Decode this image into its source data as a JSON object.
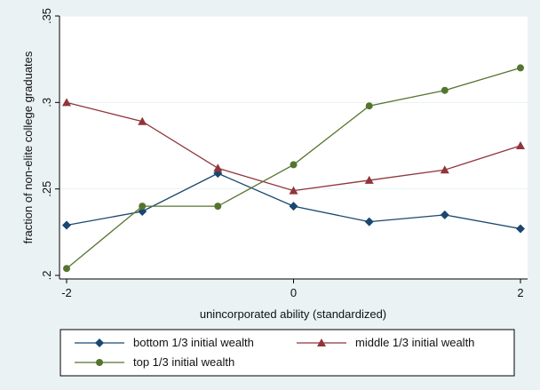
{
  "chart_data": {
    "type": "line",
    "title": "",
    "xlabel": "unincorporated ability (standardized)",
    "ylabel": "fraction of non-elite college graduates",
    "xlim": [
      -2,
      2
    ],
    "ylim": [
      0.2,
      0.35
    ],
    "xticks": [
      -2,
      0,
      2
    ],
    "xtick_labels": [
      "-2",
      "0",
      "2"
    ],
    "yticks": [
      0.2,
      0.25,
      0.3,
      0.35
    ],
    "ytick_labels": [
      ".2",
      ".25",
      ".3",
      ".35"
    ],
    "x": [
      -2,
      -1.333,
      -0.667,
      0,
      0.667,
      1.333,
      2
    ],
    "grid": "horizontal",
    "legend_position": "bottom",
    "series": [
      {
        "name": "bottom 1/3 initial wealth",
        "color": "#1a476f",
        "marker": "diamond",
        "values": [
          0.229,
          0.237,
          0.259,
          0.24,
          0.231,
          0.235,
          0.227
        ]
      },
      {
        "name": "middle 1/3 initial wealth",
        "color": "#90353b",
        "marker": "triangle",
        "values": [
          0.3,
          0.289,
          0.262,
          0.249,
          0.255,
          0.261,
          0.275
        ]
      },
      {
        "name": "top 1/3 initial wealth",
        "color": "#55752f",
        "marker": "circle",
        "values": [
          0.204,
          0.24,
          0.24,
          0.264,
          0.298,
          0.307,
          0.32
        ]
      }
    ]
  }
}
